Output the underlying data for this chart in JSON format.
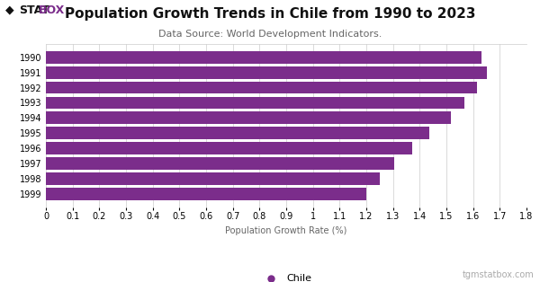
{
  "years": [
    "1990",
    "1991",
    "1992",
    "1993",
    "1994",
    "1995",
    "1996",
    "1997",
    "1998",
    "1999"
  ],
  "values": [
    1.63,
    1.651,
    1.615,
    1.568,
    1.518,
    1.435,
    1.372,
    1.303,
    1.252,
    1.2
  ],
  "bar_color": "#7B2D8B",
  "title": "Population Growth Trends in Chile from 1990 to 2023",
  "subtitle": "Data Source: World Development Indicators.",
  "xlabel": "Population Growth Rate (%)",
  "xlim": [
    0,
    1.8
  ],
  "xticks": [
    0,
    0.1,
    0.2,
    0.3,
    0.4,
    0.5,
    0.6,
    0.7,
    0.8,
    0.9,
    1.0,
    1.1,
    1.2,
    1.3,
    1.4,
    1.5,
    1.6,
    1.7,
    1.8
  ],
  "xtick_labels": [
    "0",
    "0.1",
    "0.2",
    "0.3",
    "0.4",
    "0.5",
    "0.6",
    "0.7",
    "0.8",
    "0.9",
    "1",
    "1.1",
    "1.2",
    "1.3",
    "1.4",
    "1.5",
    "1.6",
    "1.7",
    "1.8"
  ],
  "legend_label": "Chile",
  "legend_color": "#7B2D8B",
  "watermark": "tgmstatbox.com",
  "background_color": "#FFFFFF",
  "grid_color": "#CCCCCC",
  "title_fontsize": 11,
  "subtitle_fontsize": 8,
  "xlabel_fontsize": 7,
  "tick_fontsize": 7,
  "ytick_fontsize": 7
}
